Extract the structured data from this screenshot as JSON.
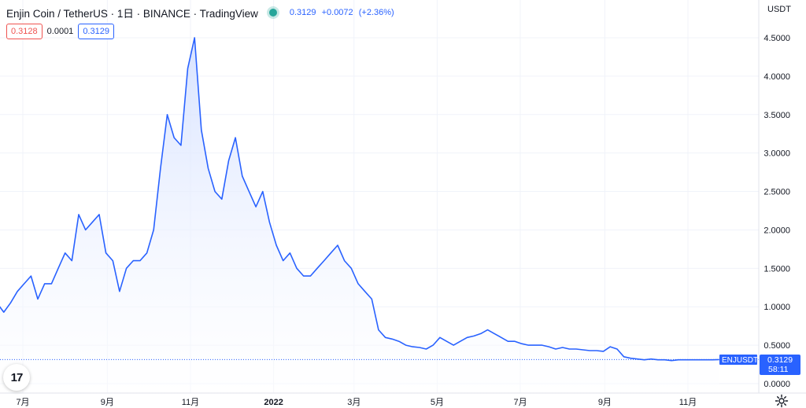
{
  "header": {
    "title": "Enjin Coin / TetherUS · 1日 · BINANCE · TradingView",
    "last": "0.3129",
    "change": "+0.0072",
    "change_pct": "(+2.36%)"
  },
  "prices": {
    "sell": "0.3128",
    "spread": "0.0001",
    "buy": "0.3129"
  },
  "price_label": {
    "symbol": "ENJUSDT",
    "value": "0.3129",
    "countdown": "58:11"
  },
  "colors": {
    "line": "#2962ff",
    "fill_top": "#d4e0ff",
    "fill_bottom": "#ffffff",
    "grid": "#f0f3fa",
    "text": "#131722"
  },
  "icons": {
    "status": "live-dot-icon",
    "logo": "tradingview-logo-icon",
    "settings": "gear-icon"
  },
  "chart_data": {
    "type": "area",
    "currency": "USDT",
    "ylim": [
      0,
      4.6
    ],
    "y_ticks": [
      "4.5000",
      "4.0000",
      "3.5000",
      "3.0000",
      "2.5000",
      "2.0000",
      "1.5000",
      "1.0000",
      "0.5000",
      "0.0000"
    ],
    "x_ticks": [
      "7月",
      "9月",
      "11月",
      "2022",
      "3月",
      "5月",
      "7月",
      "9月",
      "11月"
    ],
    "x_tick_dates": [
      "2021-07-01",
      "2021-09-01",
      "2021-11-01",
      "2022-01-01",
      "2022-03-01",
      "2022-05-01",
      "2022-07-01",
      "2022-09-01",
      "2022-11-01"
    ],
    "grid": true,
    "x": [
      "2021-06-07",
      "2021-06-12",
      "2021-06-17",
      "2021-06-22",
      "2021-06-27",
      "2021-07-02",
      "2021-07-07",
      "2021-07-12",
      "2021-07-17",
      "2021-07-22",
      "2021-07-27",
      "2021-08-01",
      "2021-08-06",
      "2021-08-11",
      "2021-08-16",
      "2021-08-21",
      "2021-08-26",
      "2021-08-31",
      "2021-09-05",
      "2021-09-10",
      "2021-09-15",
      "2021-09-20",
      "2021-09-25",
      "2021-09-30",
      "2021-10-05",
      "2021-10-10",
      "2021-10-15",
      "2021-10-20",
      "2021-10-25",
      "2021-10-30",
      "2021-11-04",
      "2021-11-09",
      "2021-11-14",
      "2021-11-19",
      "2021-11-24",
      "2021-11-29",
      "2021-12-04",
      "2021-12-09",
      "2021-12-14",
      "2021-12-19",
      "2021-12-24",
      "2021-12-29",
      "2022-01-03",
      "2022-01-08",
      "2022-01-13",
      "2022-01-18",
      "2022-01-23",
      "2022-01-28",
      "2022-02-02",
      "2022-02-07",
      "2022-02-12",
      "2022-02-17",
      "2022-02-22",
      "2022-02-27",
      "2022-03-04",
      "2022-03-09",
      "2022-03-14",
      "2022-03-19",
      "2022-03-24",
      "2022-03-29",
      "2022-04-03",
      "2022-04-08",
      "2022-04-13",
      "2022-04-18",
      "2022-04-23",
      "2022-04-28",
      "2022-05-03",
      "2022-05-08",
      "2022-05-13",
      "2022-05-18",
      "2022-05-23",
      "2022-05-28",
      "2022-06-02",
      "2022-06-07",
      "2022-06-12",
      "2022-06-17",
      "2022-06-22",
      "2022-06-27",
      "2022-07-02",
      "2022-07-07",
      "2022-07-12",
      "2022-07-17",
      "2022-07-22",
      "2022-07-27",
      "2022-08-01",
      "2022-08-06",
      "2022-08-11",
      "2022-08-16",
      "2022-08-21",
      "2022-08-26",
      "2022-08-31",
      "2022-09-05",
      "2022-09-10",
      "2022-09-15",
      "2022-09-20",
      "2022-09-25",
      "2022-09-30",
      "2022-10-05",
      "2022-10-10",
      "2022-10-15",
      "2022-10-20",
      "2022-10-25",
      "2022-10-30",
      "2022-11-04",
      "2022-11-09",
      "2022-11-14",
      "2022-11-19",
      "2022-11-24"
    ],
    "values": [
      1.4,
      1.05,
      0.93,
      1.05,
      1.2,
      1.3,
      1.4,
      1.1,
      1.3,
      1.3,
      1.5,
      1.7,
      1.6,
      2.2,
      2.0,
      2.1,
      2.2,
      1.7,
      1.6,
      1.2,
      1.5,
      1.6,
      1.6,
      1.7,
      2.0,
      2.8,
      3.5,
      3.2,
      3.1,
      4.1,
      4.5,
      3.3,
      2.8,
      2.5,
      2.4,
      2.9,
      3.2,
      2.7,
      2.5,
      2.3,
      2.5,
      2.1,
      1.8,
      1.6,
      1.7,
      1.5,
      1.4,
      1.4,
      1.5,
      1.6,
      1.7,
      1.8,
      1.6,
      1.5,
      1.3,
      1.2,
      1.1,
      0.7,
      0.6,
      0.58,
      0.55,
      0.5,
      0.48,
      0.47,
      0.45,
      0.5,
      0.6,
      0.55,
      0.5,
      0.55,
      0.6,
      0.62,
      0.65,
      0.7,
      0.65,
      0.6,
      0.55,
      0.55,
      0.52,
      0.5,
      0.5,
      0.5,
      0.48,
      0.45,
      0.47,
      0.45,
      0.45,
      0.44,
      0.43,
      0.43,
      0.42,
      0.48,
      0.45,
      0.35,
      0.33,
      0.32,
      0.31,
      0.32,
      0.31,
      0.31,
      0.3,
      0.31,
      0.31,
      0.31,
      0.31,
      0.31,
      0.31,
      0.3129
    ]
  }
}
